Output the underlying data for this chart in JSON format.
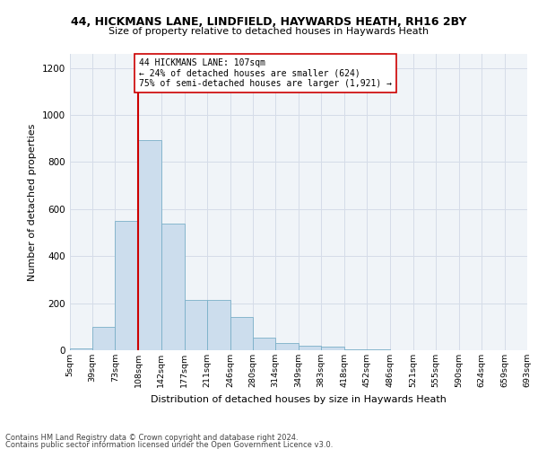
{
  "title1": "44, HICKMANS LANE, LINDFIELD, HAYWARDS HEATH, RH16 2BY",
  "title2": "Size of property relative to detached houses in Haywards Heath",
  "xlabel": "Distribution of detached houses by size in Haywards Heath",
  "ylabel": "Number of detached properties",
  "footer1": "Contains HM Land Registry data © Crown copyright and database right 2024.",
  "footer2": "Contains public sector information licensed under the Open Government Licence v3.0.",
  "annotation_line1": "44 HICKMANS LANE: 107sqm",
  "annotation_line2": "← 24% of detached houses are smaller (624)",
  "annotation_line3": "75% of semi-detached houses are larger (1,921) →",
  "property_size": 107,
  "bar_color": "#ccdded",
  "bar_edge_color": "#7aafc8",
  "vline_color": "#cc0000",
  "annotation_box_edge": "#cc0000",
  "annotation_box_face": "white",
  "ylim": [
    0,
    1260
  ],
  "yticks": [
    0,
    200,
    400,
    600,
    800,
    1000,
    1200
  ],
  "bin_edges": [
    5,
    39,
    73,
    108,
    142,
    177,
    211,
    246,
    280,
    314,
    349,
    383,
    418,
    452,
    486,
    521,
    555,
    590,
    624,
    659,
    693
  ],
  "counts": [
    7,
    100,
    550,
    895,
    540,
    215,
    215,
    140,
    55,
    30,
    20,
    15,
    5,
    2,
    1,
    0,
    0,
    0,
    0,
    0
  ],
  "tick_labels": [
    "5sqm",
    "39sqm",
    "73sqm",
    "108sqm",
    "142sqm",
    "177sqm",
    "211sqm",
    "246sqm",
    "280sqm",
    "314sqm",
    "349sqm",
    "383sqm",
    "418sqm",
    "452sqm",
    "486sqm",
    "521sqm",
    "555sqm",
    "590sqm",
    "624sqm",
    "659sqm",
    "693sqm"
  ],
  "grid_color": "#d5dce8",
  "background_color": "#f0f4f8"
}
